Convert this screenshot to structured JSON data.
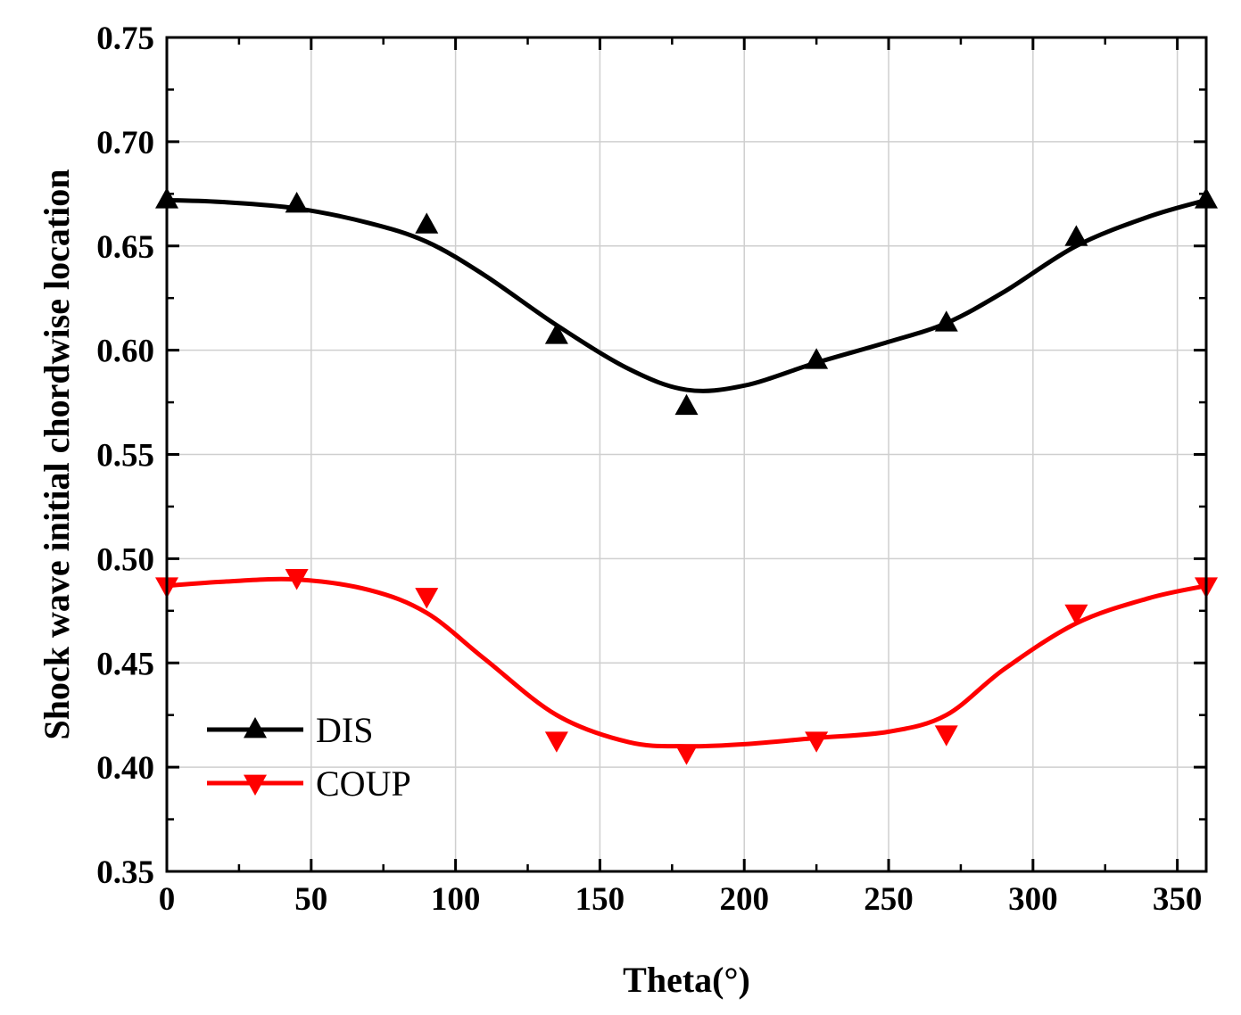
{
  "chart_data": {
    "type": "line",
    "title": "",
    "xlabel": "Theta(°)",
    "ylabel": "Shock wave initial chordwise location",
    "xlim": [
      0,
      360
    ],
    "ylim": [
      0.35,
      0.75
    ],
    "x_ticks": [
      0,
      50,
      100,
      150,
      200,
      250,
      300,
      350
    ],
    "x_tick_labels": [
      "0",
      "50",
      "100",
      "150",
      "200",
      "250",
      "300",
      "350"
    ],
    "y_ticks": [
      0.35,
      0.4,
      0.45,
      0.5,
      0.55,
      0.6,
      0.65,
      0.7,
      0.75
    ],
    "y_tick_labels": [
      "0.35",
      "0.40",
      "0.45",
      "0.50",
      "0.55",
      "0.60",
      "0.65",
      "0.70",
      "0.75"
    ],
    "grid": true,
    "legend_position": "lower-left",
    "series": [
      {
        "name": "DIS",
        "color": "#000000",
        "marker": "triangle-up",
        "x": [
          0,
          45,
          90,
          135,
          180,
          225,
          270,
          315,
          360
        ],
        "values": [
          0.672,
          0.67,
          0.66,
          0.607,
          0.573,
          0.595,
          0.613,
          0.654,
          0.672
        ],
        "curve_x": [
          0,
          20,
          45,
          70,
          90,
          110,
          135,
          160,
          180,
          200,
          225,
          250,
          270,
          290,
          315,
          340,
          360
        ],
        "curve_y": [
          0.672,
          0.671,
          0.668,
          0.661,
          0.652,
          0.636,
          0.612,
          0.591,
          0.581,
          0.583,
          0.594,
          0.604,
          0.613,
          0.628,
          0.65,
          0.664,
          0.672
        ]
      },
      {
        "name": "COUP",
        "color": "#ff0000",
        "marker": "triangle-down",
        "x": [
          0,
          45,
          90,
          135,
          180,
          225,
          270,
          315,
          360
        ],
        "values": [
          0.487,
          0.491,
          0.482,
          0.413,
          0.407,
          0.413,
          0.416,
          0.474,
          0.487
        ],
        "curve_x": [
          0,
          20,
          45,
          70,
          90,
          110,
          135,
          160,
          180,
          200,
          225,
          250,
          270,
          290,
          315,
          340,
          360
        ],
        "curve_y": [
          0.487,
          0.489,
          0.49,
          0.485,
          0.474,
          0.452,
          0.425,
          0.412,
          0.41,
          0.411,
          0.414,
          0.417,
          0.425,
          0.447,
          0.469,
          0.481,
          0.487
        ]
      }
    ]
  }
}
